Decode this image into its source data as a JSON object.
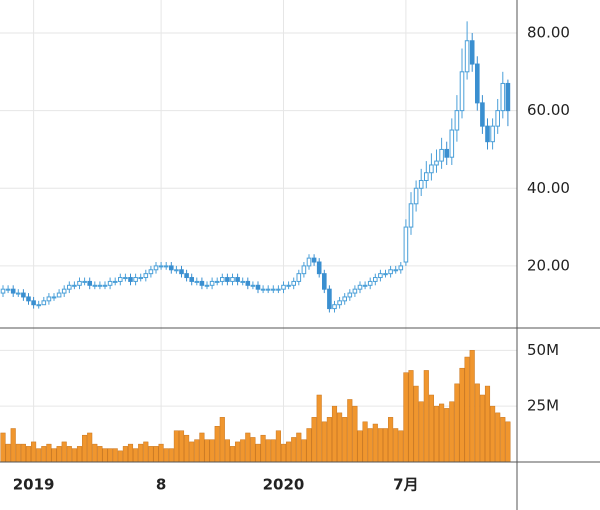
{
  "chart_data": [
    {
      "type": "candlestick",
      "categories": [
        null,
        null,
        null,
        null,
        null,
        null,
        "2019",
        null,
        null,
        null,
        null,
        null,
        null,
        null,
        null,
        null,
        null,
        null,
        null,
        null,
        null,
        null,
        null,
        null,
        null,
        null,
        null,
        null,
        null,
        null,
        null,
        "8",
        null,
        null,
        null,
        null,
        null,
        null,
        null,
        null,
        null,
        null,
        null,
        null,
        null,
        null,
        null,
        null,
        null,
        null,
        null,
        null,
        null,
        null,
        null,
        "2020",
        null,
        null,
        null,
        null,
        null,
        null,
        null,
        null,
        null,
        null,
        null,
        null,
        null,
        null,
        null,
        null,
        null,
        null,
        null,
        null,
        null,
        null,
        null,
        "7月",
        null,
        null,
        null,
        null,
        null,
        null,
        null,
        null,
        null,
        null,
        null,
        null,
        null,
        null,
        null,
        null,
        null,
        null,
        null,
        null
      ],
      "open": [
        13,
        14,
        14,
        13,
        13,
        12,
        11,
        10,
        10,
        11,
        12,
        12,
        13,
        14,
        15,
        15,
        16,
        16,
        15,
        15,
        15,
        15,
        16,
        16,
        17,
        17,
        16,
        17,
        17,
        18,
        19,
        20,
        20,
        20,
        19,
        19,
        18,
        17,
        16,
        16,
        15,
        15,
        16,
        16,
        17,
        16,
        17,
        16,
        16,
        15,
        15,
        14,
        14,
        14,
        14,
        14,
        15,
        15,
        16,
        18,
        20,
        22,
        21,
        18,
        14,
        9,
        10,
        11,
        12,
        13,
        14,
        15,
        15,
        16,
        17,
        18,
        18,
        19,
        19,
        21,
        30,
        36,
        40,
        42,
        44,
        46,
        47,
        50,
        48,
        55,
        60,
        70,
        78,
        72,
        62,
        56,
        52,
        56,
        60,
        67
      ],
      "high": [
        15,
        15,
        15,
        14,
        14,
        13,
        12,
        11,
        12,
        13,
        13,
        14,
        15,
        16,
        16,
        17,
        17,
        17,
        16,
        16,
        16,
        17,
        17,
        18,
        18,
        18,
        18,
        18,
        19,
        20,
        21,
        21,
        21,
        21,
        20,
        20,
        19,
        18,
        17,
        17,
        16,
        17,
        17,
        18,
        18,
        18,
        18,
        17,
        17,
        16,
        16,
        15,
        15,
        15,
        15,
        16,
        16,
        17,
        19,
        21,
        23,
        23,
        22,
        19,
        15,
        11,
        12,
        13,
        14,
        15,
        16,
        16,
        17,
        18,
        19,
        19,
        20,
        20,
        21,
        32,
        39,
        42,
        45,
        47,
        49,
        50,
        53,
        52,
        58,
        64,
        76,
        83,
        80,
        74,
        64,
        58,
        58,
        63,
        70,
        68
      ],
      "low": [
        12,
        13,
        12,
        12,
        11,
        10,
        9,
        9,
        10,
        10,
        11,
        12,
        12,
        13,
        14,
        14,
        15,
        14,
        14,
        14,
        14,
        14,
        15,
        15,
        16,
        15,
        15,
        16,
        16,
        17,
        18,
        19,
        19,
        18,
        18,
        17,
        16,
        15,
        15,
        14,
        14,
        14,
        15,
        15,
        15,
        15,
        15,
        15,
        14,
        14,
        13,
        13,
        13,
        13,
        13,
        13,
        14,
        14,
        15,
        17,
        19,
        20,
        17,
        13,
        8,
        8,
        9,
        10,
        11,
        12,
        13,
        14,
        14,
        15,
        16,
        17,
        17,
        18,
        18,
        20,
        28,
        34,
        38,
        40,
        42,
        44,
        45,
        46,
        46,
        52,
        58,
        68,
        70,
        60,
        54,
        50,
        50,
        54,
        58,
        56
      ],
      "close": [
        14,
        14,
        13,
        13,
        12,
        11,
        10,
        10,
        11,
        12,
        12,
        13,
        14,
        15,
        15,
        16,
        16,
        15,
        15,
        15,
        15,
        16,
        16,
        17,
        17,
        16,
        17,
        17,
        18,
        19,
        20,
        20,
        20,
        19,
        19,
        18,
        17,
        16,
        16,
        15,
        15,
        16,
        16,
        17,
        16,
        17,
        16,
        16,
        15,
        15,
        14,
        14,
        14,
        14,
        14,
        15,
        15,
        16,
        18,
        20,
        22,
        21,
        18,
        14,
        9,
        10,
        11,
        12,
        13,
        14,
        15,
        15,
        16,
        17,
        18,
        18,
        19,
        19,
        20,
        30,
        36,
        40,
        42,
        44,
        46,
        47,
        50,
        48,
        55,
        60,
        70,
        78,
        72,
        62,
        56,
        52,
        56,
        60,
        67,
        60
      ],
      "up_color": "#4a9fd8",
      "down_color": "#3a8fd0",
      "ylim": [
        4,
        88.5
      ],
      "yticks": [
        {
          "value": 20,
          "label": "20.00"
        },
        {
          "value": 40,
          "label": "40.00"
        },
        {
          "value": 60,
          "label": "60.00"
        },
        {
          "value": 80,
          "label": "80.00"
        }
      ],
      "grid": true
    },
    {
      "type": "bar",
      "values": [
        13,
        8,
        15,
        8,
        8,
        7,
        9,
        6,
        7,
        8,
        6,
        7,
        9,
        7,
        6,
        7,
        12,
        13,
        8,
        7,
        6,
        6,
        6,
        5,
        7,
        8,
        6,
        8,
        9,
        7,
        7,
        8,
        6,
        6,
        14,
        14,
        12,
        9,
        10,
        13,
        10,
        10,
        16,
        20,
        10,
        7,
        9,
        10,
        13,
        11,
        8,
        12,
        10,
        10,
        14,
        8,
        9,
        11,
        13,
        10,
        15,
        20,
        30,
        18,
        20,
        25,
        22,
        20,
        28,
        25,
        14,
        18,
        15,
        17,
        15,
        15,
        20,
        15,
        14,
        40,
        41,
        34,
        27,
        41,
        30,
        25,
        26,
        24,
        27,
        35,
        42,
        47,
        50,
        35,
        30,
        34,
        25,
        22,
        20,
        18
      ],
      "color": "#f0962e",
      "ylim": [
        0,
        60
      ],
      "yticks": [
        {
          "value": 25,
          "label": "25M"
        },
        {
          "value": 50,
          "label": "50M"
        }
      ],
      "grid": true
    }
  ]
}
